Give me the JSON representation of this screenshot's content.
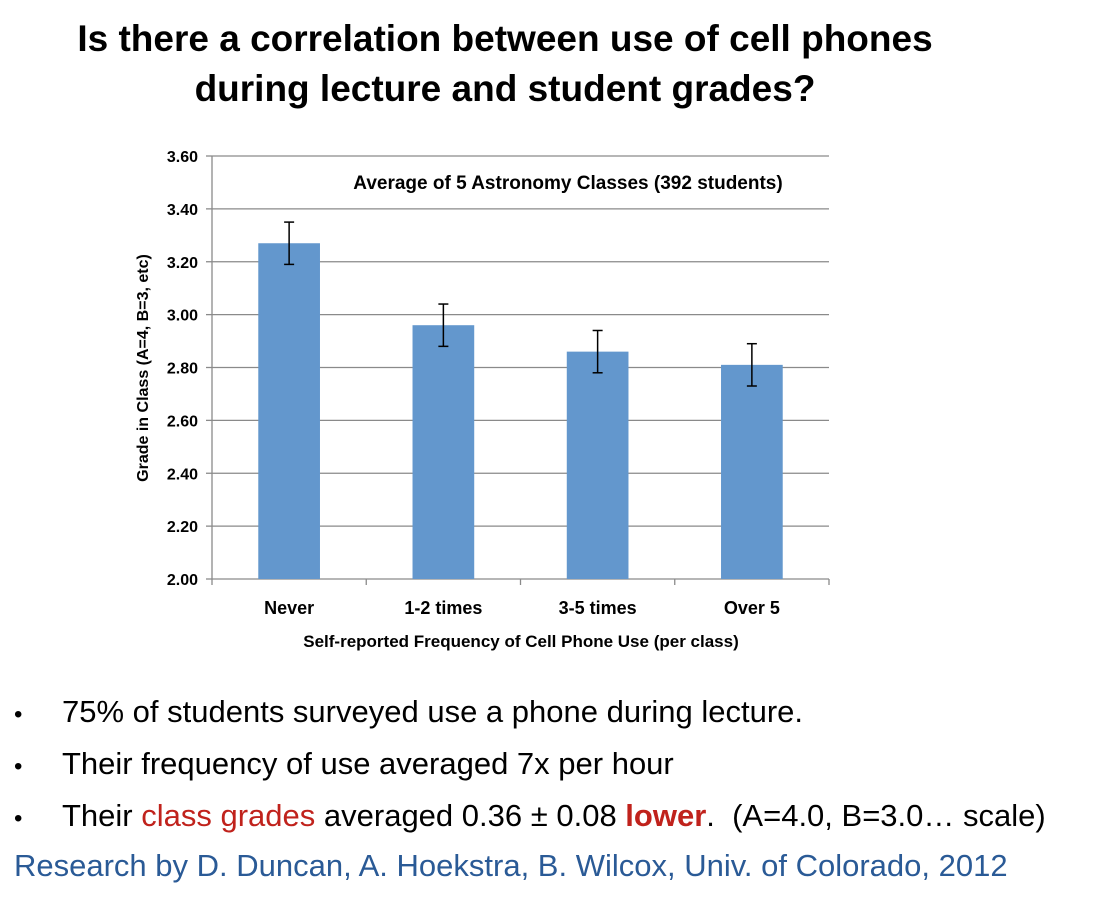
{
  "title": {
    "line1": "Is there a correlation between use of cell phones",
    "line2": "during lecture and student grades?"
  },
  "chart_data": {
    "type": "bar",
    "title": "Average of 5 Astronomy Classes (392 students)",
    "xlabel": "Self-reported Frequency of Cell Phone Use (per class)",
    "ylabel": "Grade in Class (A=4, B=3, etc)",
    "categories": [
      "Never",
      "1-2 times",
      "3-5 times",
      "Over 5"
    ],
    "values": [
      3.27,
      2.96,
      2.86,
      2.81
    ],
    "error_bars": [
      0.08,
      0.08,
      0.08,
      0.08
    ],
    "ylim": [
      2.0,
      3.6
    ],
    "yticks": [
      "2.00",
      "2.20",
      "2.40",
      "2.60",
      "2.80",
      "3.00",
      "3.20",
      "3.40",
      "3.60"
    ],
    "grid": true,
    "bar_color": "#6397cd"
  },
  "bullets": [
    {
      "text": "75% of students surveyed use a phone during lecture."
    },
    {
      "text": "Their frequency of use averaged 7x per hour"
    },
    {
      "prefix": "Their ",
      "highlight": "class grades",
      "middle": " averaged 0.36 ± 0.08 ",
      "emphasis": "lower",
      "suffix": ".  (A=4.0, B=3.0… scale)"
    }
  ],
  "bullet_symbol": "•",
  "credit": "Research by D. Duncan, A. Hoekstra, B. Wilcox, Univ. of Colorado, 2012",
  "colors": {
    "highlight_red": "#c0221c",
    "credit_blue": "#2a5a96"
  }
}
